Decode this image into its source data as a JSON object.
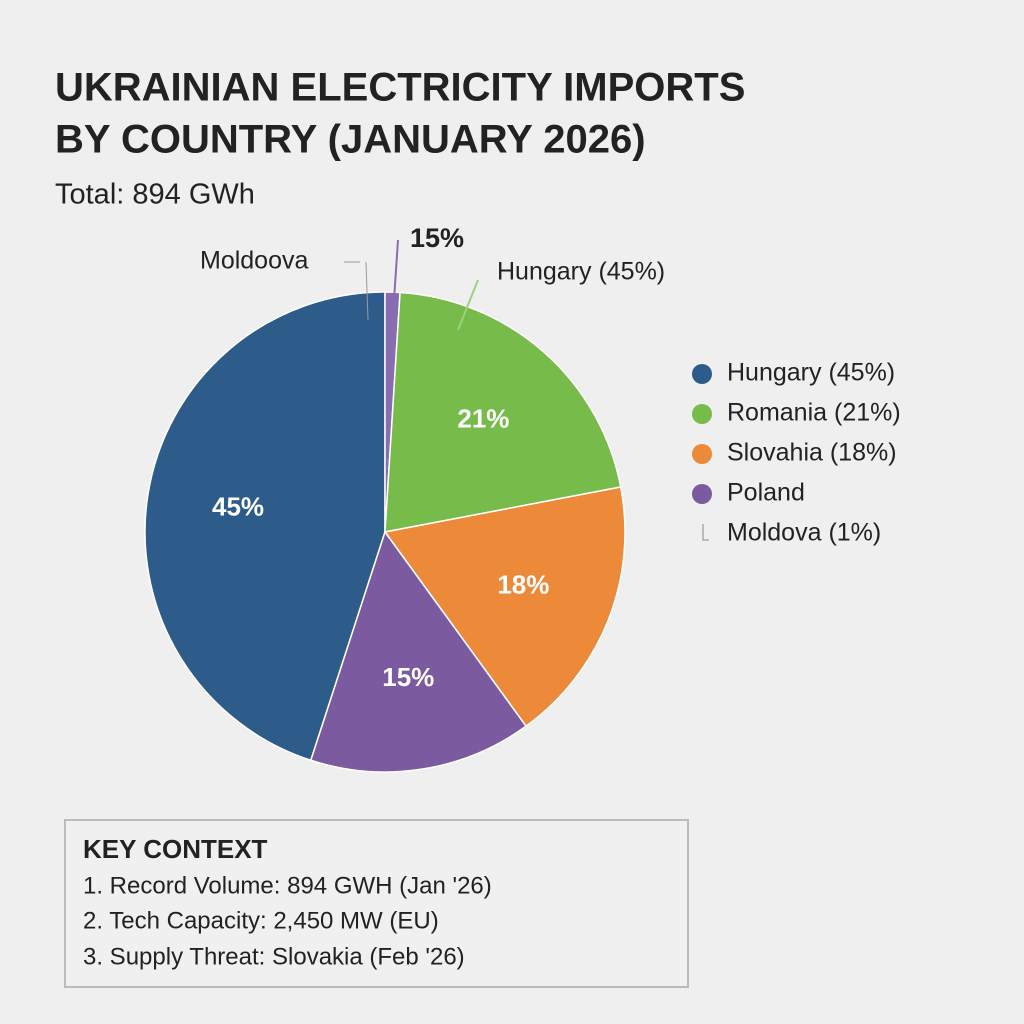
{
  "chart_data": {
    "type": "pie",
    "title": [
      "UKRAINIAN ELECTRICITY IMPORTS",
      "BY COUNTRY (JANUARY 2026)"
    ],
    "subtitle": "Total: 894 GWh",
    "categories": [
      "Hungary (45%)",
      "Romania (21%)",
      "Slovahia (18%)",
      "Poland",
      "Moldova (1%)"
    ],
    "values": [
      45,
      21,
      18,
      15,
      1
    ],
    "value_labels": [
      "45%",
      "21%",
      "18%",
      "15%",
      null
    ],
    "colors": [
      "#2d5b8a",
      "#77bb4a",
      "#ec8a3a",
      "#7b5aa0",
      "#8a6cb0"
    ],
    "annotations": [
      "Moldoova",
      "15%",
      "Hungary (45%)"
    ]
  },
  "context": {
    "title": "KEY CONTEXT",
    "items": [
      "1. Record Volume: 894 GWH (Jan '26)",
      "2. Tech Capacity: 2,450 MW (EU)",
      "3. Supply Threat: Slovakia (Feb '26)"
    ]
  }
}
